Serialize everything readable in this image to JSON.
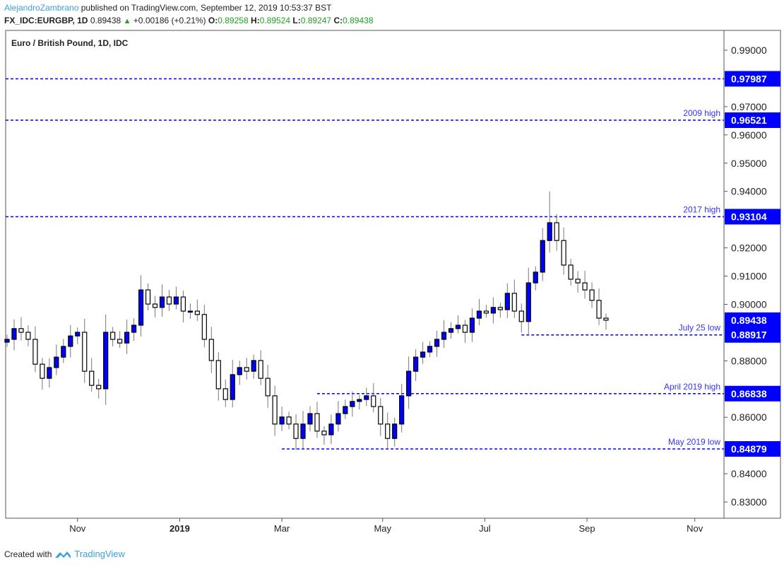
{
  "header": {
    "author": "AlejandroZambrano",
    "published_text": "published on TradingView.com, September 12, 2019 10:53:37 BST",
    "symbol": "FX_IDC:EURGBP, 1D",
    "last": "0.89438",
    "change": "+0.00186 (+0.21%)",
    "o_label": "O:",
    "o": "0.89258",
    "h_label": "H:",
    "h": "0.89524",
    "l_label": "L:",
    "l": "0.89247",
    "c_label": "C:",
    "c": "0.89438"
  },
  "footer": {
    "created_with": "Created with",
    "brand": "TradingView"
  },
  "colors": {
    "up": "#0000ff",
    "down": "#ffffff",
    "level": "#0000ff",
    "label_text": "#3333ff"
  },
  "chart_data": {
    "type": "candlestick",
    "title": "Euro / British Pound, 1D, IDC",
    "ylim": [
      0.825,
      0.997
    ],
    "y_ticks": [
      "0.99000",
      "0.97000",
      "0.96000",
      "0.95000",
      "0.94000",
      "0.92000",
      "0.91000",
      "0.90000",
      "0.88000",
      "0.86000",
      "0.84000",
      "0.83000"
    ],
    "x_ticks": [
      {
        "label": "Nov",
        "bold": false
      },
      {
        "label": "2019",
        "bold": true
      },
      {
        "label": "Mar",
        "bold": false
      },
      {
        "label": "May",
        "bold": false
      },
      {
        "label": "Jul",
        "bold": false
      },
      {
        "label": "Sep",
        "bold": false
      },
      {
        "label": "Nov",
        "bold": false
      }
    ],
    "x_tick_index": [
      10,
      24.5,
      39,
      53.3,
      67.8,
      82.3,
      97.6
    ],
    "sampling": "approx. every 3 trading days, Sep 2018 - Sep 12 2019",
    "closes": [
      0.8876,
      0.8914,
      0.8901,
      0.8876,
      0.8788,
      0.8738,
      0.8776,
      0.8813,
      0.8851,
      0.8888,
      0.8901,
      0.8763,
      0.8713,
      0.8701,
      0.8901,
      0.8876,
      0.8863,
      0.8901,
      0.8926,
      0.9051,
      0.9001,
      0.8989,
      0.9026,
      0.9001,
      0.9026,
      0.8976,
      0.8976,
      0.8964,
      0.8876,
      0.8801,
      0.8701,
      0.8663,
      0.8751,
      0.8776,
      0.8763,
      0.8801,
      0.8738,
      0.8676,
      0.8576,
      0.8601,
      0.8576,
      0.8525,
      0.8576,
      0.8613,
      0.8551,
      0.8538,
      0.8576,
      0.8613,
      0.8638,
      0.8656,
      0.8663,
      0.8676,
      0.8638,
      0.8576,
      0.8525,
      0.8576,
      0.8676,
      0.8763,
      0.8813,
      0.8831,
      0.8851,
      0.8876,
      0.8901,
      0.8914,
      0.8926,
      0.8901,
      0.8951,
      0.8976,
      0.8969,
      0.8989,
      0.8981,
      0.9039,
      0.8976,
      0.8939,
      0.9076,
      0.9114,
      0.9226,
      0.9289,
      0.9226,
      0.9139,
      0.9089,
      0.9076,
      0.9051,
      0.9014,
      0.8951,
      0.89438
    ],
    "notable_high": {
      "index": 77,
      "value": 0.94
    },
    "levels": [
      {
        "price": 0.97987,
        "label": "",
        "value_label": "0.97987",
        "start_index": 0
      },
      {
        "price": 0.96521,
        "label": "2009 high",
        "value_label": "0.96521",
        "start_index": 0
      },
      {
        "price": 0.93104,
        "label": "2017 high",
        "value_label": "0.93104",
        "start_index": 0
      },
      {
        "price": 0.88917,
        "label": "July 25 low",
        "value_label": "0.88917",
        "start_index": 73
      },
      {
        "price": 0.86838,
        "label": "April 2019 high",
        "value_label": "0.86838",
        "start_index": 44
      },
      {
        "price": 0.84879,
        "label": "May 2019 low",
        "value_label": "0.84879",
        "start_index": 39
      }
    ],
    "last_price_label": "0.89438",
    "last_price": 0.89438
  }
}
